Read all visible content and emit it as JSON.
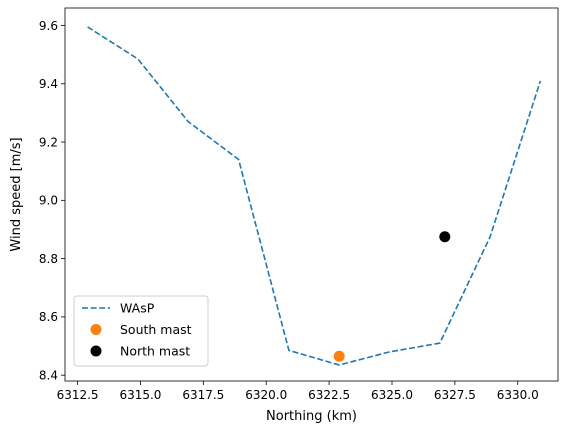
{
  "chart_data": {
    "type": "line",
    "xlabel": "Northing (km)",
    "ylabel": "Wind speed [m/s]",
    "xlim": [
      6312.0,
      6331.6
    ],
    "ylim": [
      8.38,
      9.66
    ],
    "xticks": [
      6312.5,
      6315.0,
      6317.5,
      6320.0,
      6322.5,
      6325.0,
      6327.5,
      6330.0
    ],
    "xtick_labels": [
      "6312.5",
      "6315.0",
      "6317.5",
      "6320.0",
      "6322.5",
      "6325.0",
      "6327.5",
      "6330.0"
    ],
    "yticks": [
      8.4,
      8.6,
      8.8,
      9.0,
      9.2,
      9.4,
      9.6
    ],
    "ytick_labels": [
      "8.4",
      "8.6",
      "8.8",
      "9.0",
      "9.2",
      "9.4",
      "9.6"
    ],
    "grid": false,
    "legend_position": "lower-left",
    "series": [
      {
        "name": "WAsP",
        "kind": "line",
        "style": "dashed",
        "color": "#1f77b4",
        "x": [
          6312.9,
          6314.9,
          6316.9,
          6318.9,
          6320.9,
          6322.9,
          6324.9,
          6326.9,
          6328.9,
          6330.9
        ],
        "y": [
          9.595,
          9.485,
          9.27,
          9.14,
          8.485,
          8.435,
          8.48,
          8.51,
          8.875,
          9.41
        ]
      },
      {
        "name": "South mast",
        "kind": "marker",
        "color": "#ff7f0e",
        "x": [
          6322.9
        ],
        "y": [
          8.465
        ]
      },
      {
        "name": "North mast",
        "kind": "marker",
        "color": "#000000",
        "x": [
          6327.1
        ],
        "y": [
          8.875
        ]
      }
    ]
  }
}
